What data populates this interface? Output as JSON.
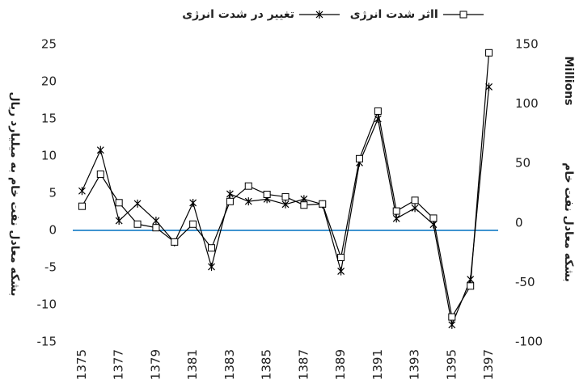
{
  "chart_data": {
    "type": "line",
    "categories": [
      1375,
      null,
      1377,
      null,
      1379,
      null,
      1381,
      null,
      1383,
      null,
      1385,
      null,
      1387,
      null,
      1389,
      null,
      1391,
      null,
      1393,
      null,
      1395,
      null,
      1397
    ],
    "series": [
      {
        "name": "تغییر در شدت انرژی",
        "color": "#000000",
        "marker": "asterisk",
        "values": [
          5.3,
          10.8,
          1.3,
          3.6,
          1.3,
          -1.6,
          3.7,
          -4.9,
          4.9,
          3.9,
          4.2,
          3.5,
          4.2,
          3.5,
          -5.5,
          9.1,
          15.0,
          1.6,
          3.0,
          0.8,
          -12.7,
          -6.6,
          19.3
        ]
      },
      {
        "name": "اثر شدت انرژیI",
        "color": "#000000",
        "marker": "square",
        "axis": "y2",
        "values": [
          14,
          41,
          17,
          -1,
          -4,
          -16,
          -1,
          -21,
          18,
          31,
          24,
          22,
          15,
          16,
          -29,
          54,
          94,
          10,
          19,
          4,
          -79,
          -53,
          143
        ]
      }
    ],
    "ylabel": "بشکه معادل نفت خام به میلیارد ریال",
    "y2label": "بشکه معادل نفت خام",
    "y2unit": "Millions",
    "ylim": [
      -15,
      25
    ],
    "yticks": [
      -15,
      -10,
      -5,
      0,
      5,
      10,
      15,
      20,
      25
    ],
    "y2lim": [
      -100,
      150
    ],
    "y2ticks": [
      -100,
      -50,
      0,
      50,
      100,
      150
    ],
    "zero_line_color": "#0070c0"
  }
}
